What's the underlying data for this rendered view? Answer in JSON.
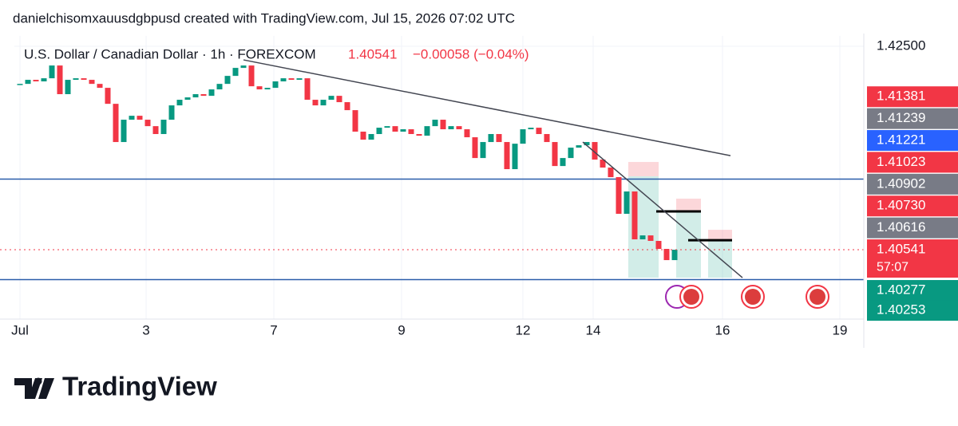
{
  "header": {
    "attribution": "danielchisomxauusdgbpusd created with TradingView.com, Jul 15, 2026 07:02 UTC",
    "brand": "TradingView"
  },
  "chart_data": {
    "type": "candlestick",
    "title": "U.S. Dollar / Canadian Dollar · 1h · FOREXCOM",
    "last_price": "1.40541",
    "change": "−0.00058 (−0.04%)",
    "up_color": "#089981",
    "down_color": "#f23645",
    "close": [
      1.42138,
      1.42177,
      1.42162,
      1.42192,
      1.42315,
      1.42039,
      1.42177,
      1.42192,
      1.42177,
      1.42138,
      1.421,
      1.41946,
      1.41578,
      1.41793,
      1.41831,
      1.41793,
      1.41731,
      1.41655,
      1.41793,
      1.41931,
      1.41985,
      1.42008,
      1.42039,
      1.42023,
      1.42085,
      1.42138,
      1.42215,
      1.42292,
      1.42315,
      1.42115,
      1.42085,
      1.421,
      1.42162,
      1.42192,
      1.42177,
      1.42192,
      1.41985,
      1.41931,
      1.41985,
      1.42023,
      1.41962,
      1.41885,
      1.41678,
      1.41601,
      1.41655,
      1.41716,
      1.41731,
      1.41678,
      1.41701,
      1.41655,
      1.41639,
      1.41731,
      1.41793,
      1.41701,
      1.41731,
      1.41701,
      1.41624,
      1.41424,
      1.41578,
      1.41655,
      1.41578,
      1.41317,
      1.41562,
      1.41701,
      1.41716,
      1.41655,
      1.41578,
      1.41347,
      1.41424,
      1.41524,
      1.41547,
      1.41578,
      1.41409,
      1.41332,
      1.4124,
      1.40887,
      1.41102,
      1.40641,
      1.40679,
      1.40626,
      1.40549,
      1.40441,
      1.40541
    ],
    "xlim": [
      -0.7,
      105.7
    ],
    "xticks": [
      {
        "value": 0,
        "label": "Jul"
      },
      {
        "value": 15.8,
        "label": "3"
      },
      {
        "value": 31.8,
        "label": "7"
      },
      {
        "value": 47.8,
        "label": "9"
      },
      {
        "value": 63,
        "label": "12"
      },
      {
        "value": 71.8,
        "label": "14"
      },
      {
        "value": 88,
        "label": "16"
      },
      {
        "value": 102.7,
        "label": "19"
      }
    ],
    "ylim": [
      1.39873,
      1.426
    ],
    "yticks": [
      {
        "value": 1.425,
        "label": "1.42500"
      }
    ],
    "price_tags": [
      {
        "value": 1.41381,
        "label": "1.41381",
        "color": "#f23645"
      },
      {
        "value": 1.41239,
        "label": "1.41239",
        "color": "#787b86"
      },
      {
        "value": 1.41221,
        "label": "1.41221",
        "color": "#2962ff"
      },
      {
        "value": 1.41023,
        "label": "1.41023",
        "color": "#f23645"
      },
      {
        "value": 1.40902,
        "label": "1.40902",
        "color": "#787b86"
      },
      {
        "value": 1.4073,
        "label": "1.40730",
        "color": "#f23645"
      },
      {
        "value": 1.40616,
        "label": "1.40616",
        "color": "#787b86"
      },
      {
        "value": 1.40541,
        "label": "1.40541",
        "color": "#f23645",
        "countdown": "57:07"
      },
      {
        "value": 1.40277,
        "label": "1.40277",
        "color": "#089981"
      },
      {
        "value": 1.40253,
        "label": "1.40253",
        "color": "#089981"
      }
    ],
    "hlines": [
      {
        "value": 1.41221,
        "color": "#2a5caa"
      },
      {
        "value": 1.40253,
        "color": "#2a5caa"
      }
    ],
    "trendlines": [
      {
        "x": [
          28,
          89
        ],
        "y": [
          1.42369,
          1.41447
        ]
      },
      {
        "x": [
          70.5,
          90.5
        ],
        "y": [
          1.41578,
          1.40272
        ]
      }
    ],
    "positions": [
      {
        "x": [
          76.2,
          80
        ],
        "top": 1.41386,
        "entry": 1.41248,
        "bottom": 1.40272
      },
      {
        "x": [
          82.2,
          85.3
        ],
        "top": 1.41033,
        "entry": 1.4091,
        "bottom": 1.40272
      },
      {
        "x": [
          86.2,
          89.2
        ],
        "top": 1.40733,
        "entry": 1.40633,
        "bottom": 1.40272
      }
    ]
  }
}
